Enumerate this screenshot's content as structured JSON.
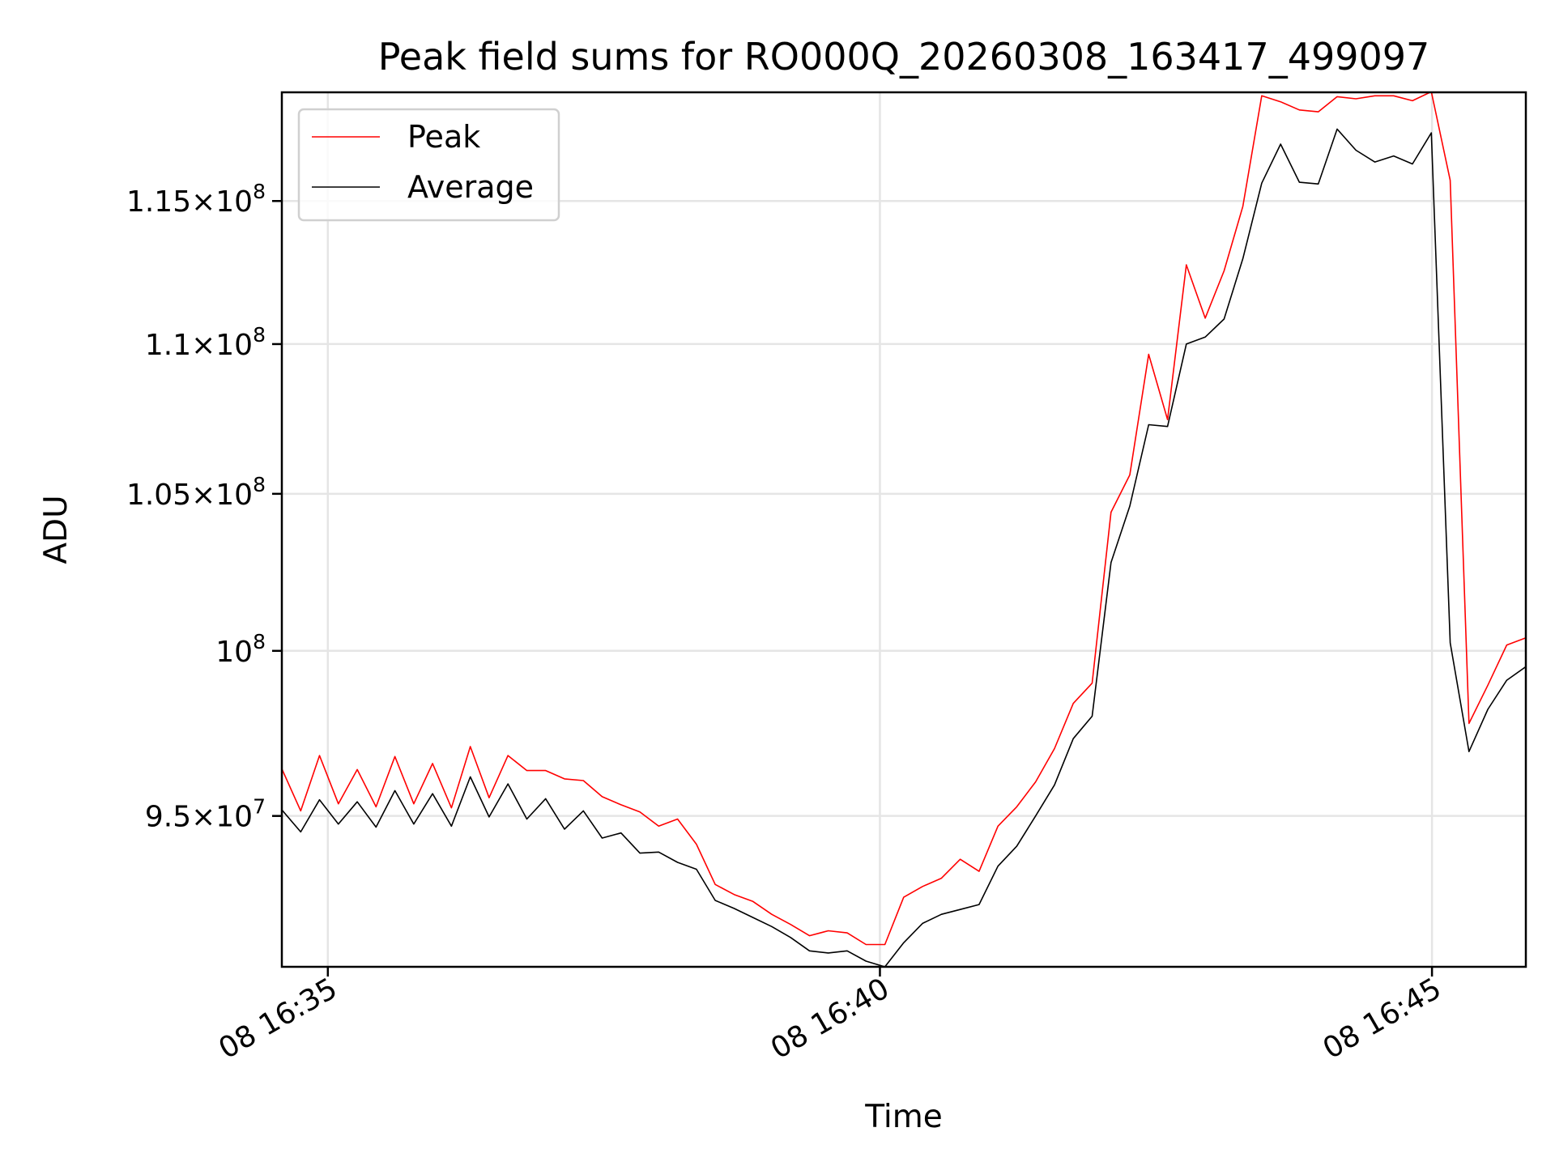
{
  "chart_data": {
    "type": "line",
    "title": "Peak field sums for RO000Q_20260308_163417_499097",
    "xlabel": "Time",
    "ylabel": "ADU",
    "yscale": "log",
    "ylim": [
      90650000,
      118950000
    ],
    "x_start": "16:34:35",
    "x_step_seconds": 10.24,
    "xlim": [
      "16:34:35",
      "16:45:51"
    ],
    "grid": true,
    "legend_position": "top-left",
    "x_ticks": [
      {
        "time": "16:35:00",
        "label": "08 16:35"
      },
      {
        "time": "16:40:00",
        "label": "08 16:40"
      },
      {
        "time": "16:45:00",
        "label": "08 16:45"
      }
    ],
    "y_ticks": [
      {
        "value": 95000000,
        "mantissa": "9.5",
        "times": "×",
        "base": "10",
        "exp": "7"
      },
      {
        "value": 100000000,
        "mantissa": "",
        "times": "",
        "base": "10",
        "exp": "8"
      },
      {
        "value": 105000000,
        "mantissa": "1.05",
        "times": "×",
        "base": "10",
        "exp": "8"
      },
      {
        "value": 110000000,
        "mantissa": "1.1",
        "times": "×",
        "base": "10",
        "exp": "8"
      },
      {
        "value": 115000000,
        "mantissa": "1.15",
        "times": "×",
        "base": "10",
        "exp": "8"
      }
    ],
    "series": [
      {
        "name": "Peak",
        "color": "#ff0000",
        "values": [
          96400000.0,
          95150000.0,
          96800000.0,
          95360000.0,
          96380000.0,
          95270000.0,
          96770000.0,
          95360000.0,
          96560000.0,
          95240000.0,
          97070000.0,
          95540000.0,
          96800000.0,
          96350000.0,
          96350000.0,
          96100000.0,
          96050000.0,
          95570000.0,
          95330000.0,
          95120000.0,
          94700000.0,
          94910000.0,
          94170000.0,
          93000000.0,
          92710000.0,
          92510000.0,
          92140000.0,
          91850000.0,
          91530000.0,
          91670000.0,
          91610000.0,
          91280000.0,
          91280000.0,
          92630000.0,
          92940000.0,
          93180000.0,
          93730000.0,
          93380000.0,
          94700000.0,
          95270000.0,
          96010000.0,
          97010000.0,
          98380000.0,
          99000000.0,
          104400000.0,
          105620000.0,
          109650000.0,
          107450000.0,
          112740000.0,
          110890000.0,
          112530000.0,
          114810000.0,
          118820000.0,
          118600000.0,
          118300000.0,
          118230000.0,
          118790000.0,
          118710000.0,
          118820000.0,
          118820000.0,
          118640000.0,
          118970000.0,
          115740000.0,
          97770000.0,
          98940000.0,
          100180000.0,
          100400000.0
        ]
      },
      {
        "name": "Average",
        "color": "#000000",
        "values": [
          95180000.0,
          94530000.0,
          95480000.0,
          94760000.0,
          95420000.0,
          94670000.0,
          95750000.0,
          94760000.0,
          95660000.0,
          94700000.0,
          96160000.0,
          94970000.0,
          95950000.0,
          94910000.0,
          95510000.0,
          94610000.0,
          95150000.0,
          94350000.0,
          94500000.0,
          93910000.0,
          93940000.0,
          93640000.0,
          93440000.0,
          92540000.0,
          92310000.0,
          92050000.0,
          91790000.0,
          91480000.0,
          91100000.0,
          91040000.0,
          91100000.0,
          90810000.0,
          90650000.0,
          91330000.0,
          91880000.0,
          92140000.0,
          92280000.0,
          92420000.0,
          93530000.0,
          94110000.0,
          95000000.0,
          95920000.0,
          97310000.0,
          97990000.0,
          102780000.0,
          104600000.0,
          107280000.0,
          107220000.0,
          110000000.0,
          110240000.0,
          110860000.0,
          112960000.0,
          115640000.0,
          117050000.0,
          115670000.0,
          115610000.0,
          117600000.0,
          116830000.0,
          116400000.0,
          116620000.0,
          116330000.0,
          117460000.0,
          100250000.0,
          96920000.0,
          98200000.0,
          99090000.0,
          99500000.0
        ]
      }
    ]
  }
}
